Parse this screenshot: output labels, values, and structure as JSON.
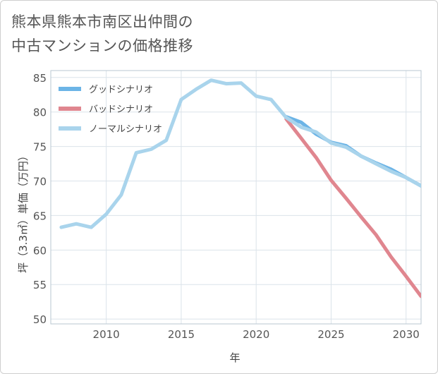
{
  "title": {
    "line1": "熊本県熊本市南区出仲間の",
    "line2": "中古マンションの価格推移"
  },
  "chart_data": {
    "type": "line",
    "xlabel": "年",
    "ylabel": "坪（3.3㎡）単価（万円）",
    "xlim": [
      2006.3,
      2031
    ],
    "ylim": [
      49.3,
      86
    ],
    "xticks": [
      2010,
      2015,
      2020,
      2025,
      2030
    ],
    "yticks": [
      50,
      55,
      60,
      65,
      70,
      75,
      80,
      85
    ],
    "series": [
      {
        "name": "グッドシナリオ",
        "color": "#6cb4e6",
        "x": [
          2022,
          2023,
          2024,
          2025,
          2026,
          2027,
          2028,
          2029,
          2030,
          2031
        ],
        "y": [
          79.3,
          78.5,
          76.8,
          75.6,
          75.1,
          73.6,
          72.6,
          71.7,
          70.5,
          69.3
        ]
      },
      {
        "name": "バッドシナリオ",
        "color": "#e0868f",
        "x": [
          2022,
          2023,
          2024,
          2025,
          2026,
          2027,
          2028,
          2029,
          2030,
          2031
        ],
        "y": [
          79.0,
          76.2,
          73.4,
          70.1,
          67.5,
          64.8,
          62.2,
          59.0,
          56.2,
          53.3
        ]
      },
      {
        "name": "ノーマルシナリオ",
        "color": "#a9d4ec",
        "x": [
          2007,
          2008,
          2009,
          2010,
          2011,
          2012,
          2013,
          2014,
          2015,
          2016,
          2017,
          2018,
          2019,
          2020,
          2021,
          2022,
          2023,
          2024,
          2025,
          2026,
          2027,
          2028,
          2029,
          2030,
          2031
        ],
        "y": [
          63.3,
          63.8,
          63.3,
          65.2,
          68.0,
          74.1,
          74.6,
          75.9,
          81.8,
          83.3,
          84.6,
          84.1,
          84.2,
          82.3,
          81.8,
          79.2,
          77.8,
          77.1,
          75.5,
          74.9,
          73.6,
          72.5,
          71.4,
          70.5,
          69.3
        ]
      }
    ]
  }
}
